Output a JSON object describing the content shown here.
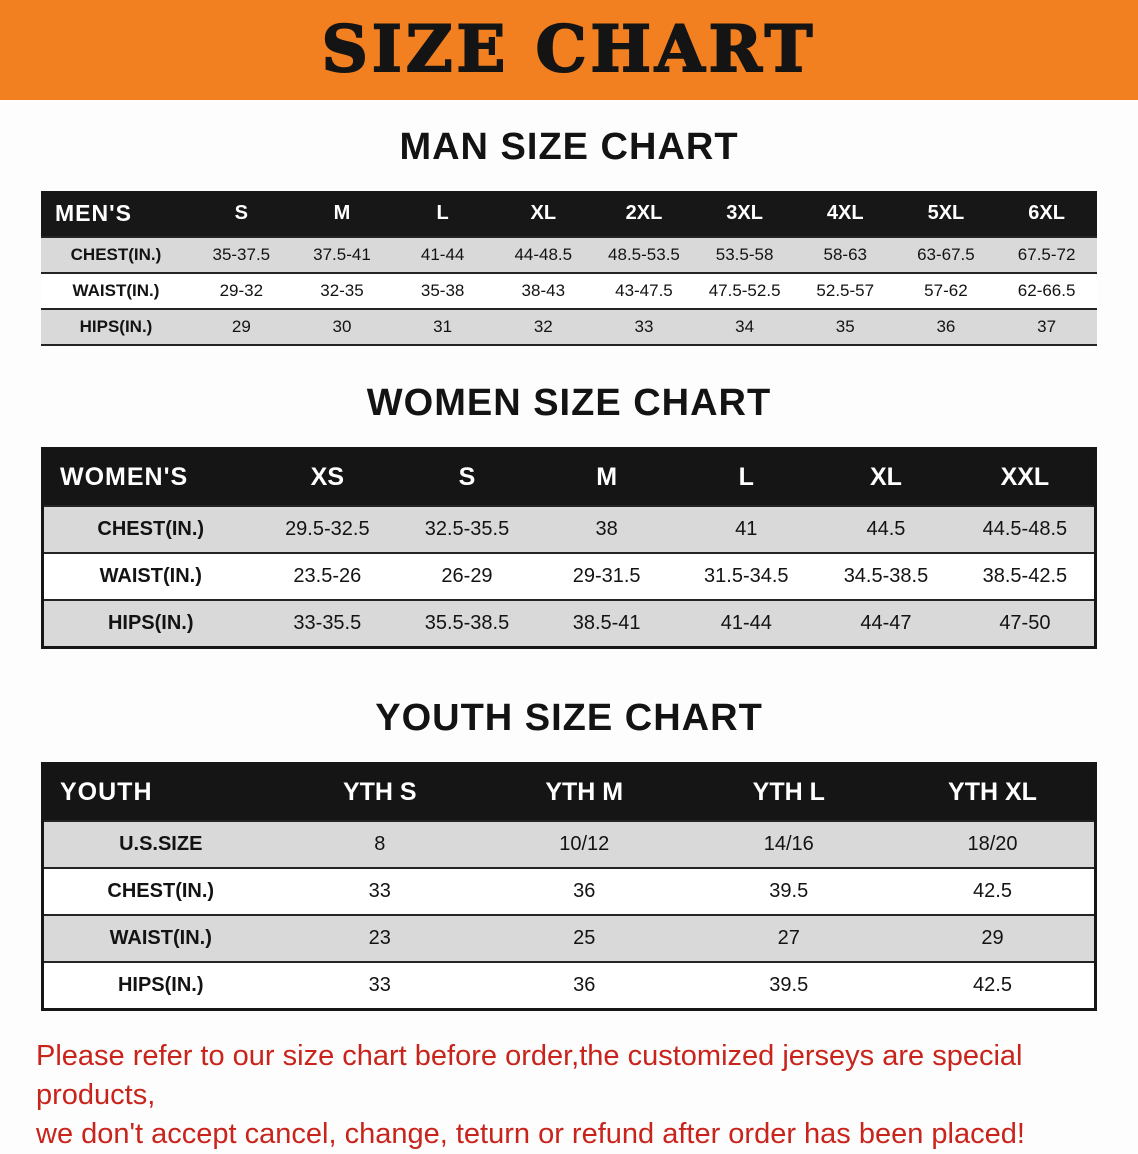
{
  "banner": {
    "title": "SIZE CHART",
    "bg_color": "#f28021"
  },
  "men": {
    "heading": "MAN SIZE CHART",
    "header": [
      "MEN'S",
      "S",
      "M",
      "L",
      "XL",
      "2XL",
      "3XL",
      "4XL",
      "5XL",
      "6XL"
    ],
    "rows": [
      {
        "label": "CHEST(IN.)",
        "values": [
          "35-37.5",
          "37.5-41",
          "41-44",
          "44-48.5",
          "48.5-53.5",
          "53.5-58",
          "58-63",
          "63-67.5",
          "67.5-72"
        ]
      },
      {
        "label": "WAIST(IN.)",
        "values": [
          "29-32",
          "32-35",
          "35-38",
          "38-43",
          "43-47.5",
          "47.5-52.5",
          "52.5-57",
          "57-62",
          "62-66.5"
        ]
      },
      {
        "label": "HIPS(IN.)",
        "values": [
          "29",
          "30",
          "31",
          "32",
          "33",
          "34",
          "35",
          "36",
          "37"
        ]
      }
    ]
  },
  "women": {
    "heading": "WOMEN SIZE CHART",
    "header": [
      "WOMEN'S",
      "XS",
      "S",
      "M",
      "L",
      "XL",
      "XXL"
    ],
    "rows": [
      {
        "label": "CHEST(IN.)",
        "values": [
          "29.5-32.5",
          "32.5-35.5",
          "38",
          "41",
          "44.5",
          "44.5-48.5"
        ]
      },
      {
        "label": "WAIST(IN.)",
        "values": [
          "23.5-26",
          "26-29",
          "29-31.5",
          "31.5-34.5",
          "34.5-38.5",
          "38.5-42.5"
        ]
      },
      {
        "label": "HIPS(IN.)",
        "values": [
          "33-35.5",
          "35.5-38.5",
          "38.5-41",
          "41-44",
          "44-47",
          "47-50"
        ]
      }
    ]
  },
  "youth": {
    "heading": "YOUTH SIZE CHART",
    "header": [
      "YOUTH",
      "YTH S",
      "YTH M",
      "YTH L",
      "YTH XL"
    ],
    "rows": [
      {
        "label": "U.S.SIZE",
        "values": [
          "8",
          "10/12",
          "14/16",
          "18/20"
        ]
      },
      {
        "label": "CHEST(IN.)",
        "values": [
          "33",
          "36",
          "39.5",
          "42.5"
        ]
      },
      {
        "label": "WAIST(IN.)",
        "values": [
          "23",
          "25",
          "27",
          "29"
        ]
      },
      {
        "label": "HIPS(IN.)",
        "values": [
          "33",
          "36",
          "39.5",
          "42.5"
        ]
      }
    ]
  },
  "disclaimer": {
    "line1": "Please refer to our size chart before order,the customized jerseys are special products,",
    "line2": "we don't accept cancel, change, teturn or refund after order has been placed!",
    "color": "#c9241c"
  }
}
